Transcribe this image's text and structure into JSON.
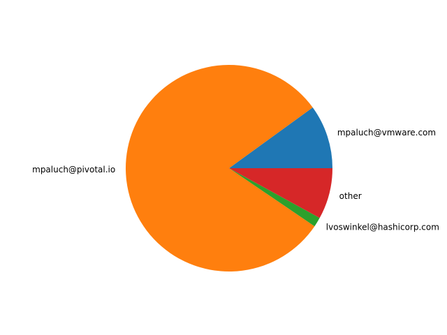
{
  "chart_data": {
    "type": "pie",
    "title": "",
    "slices": [
      {
        "label": "mpaluch@vmware.com",
        "value": 10,
        "color": "#1f77b4"
      },
      {
        "label": "mpaluch@pivotal.io",
        "value": 80.5,
        "color": "#ff7f0e"
      },
      {
        "label": "lvoswinkel@hashicorp.com",
        "value": 1.5,
        "color": "#2ca02c"
      },
      {
        "label": "other",
        "value": 8,
        "color": "#d62728"
      }
    ],
    "start_angle_deg": 0,
    "direction": "counterclockwise",
    "legend": "none"
  }
}
